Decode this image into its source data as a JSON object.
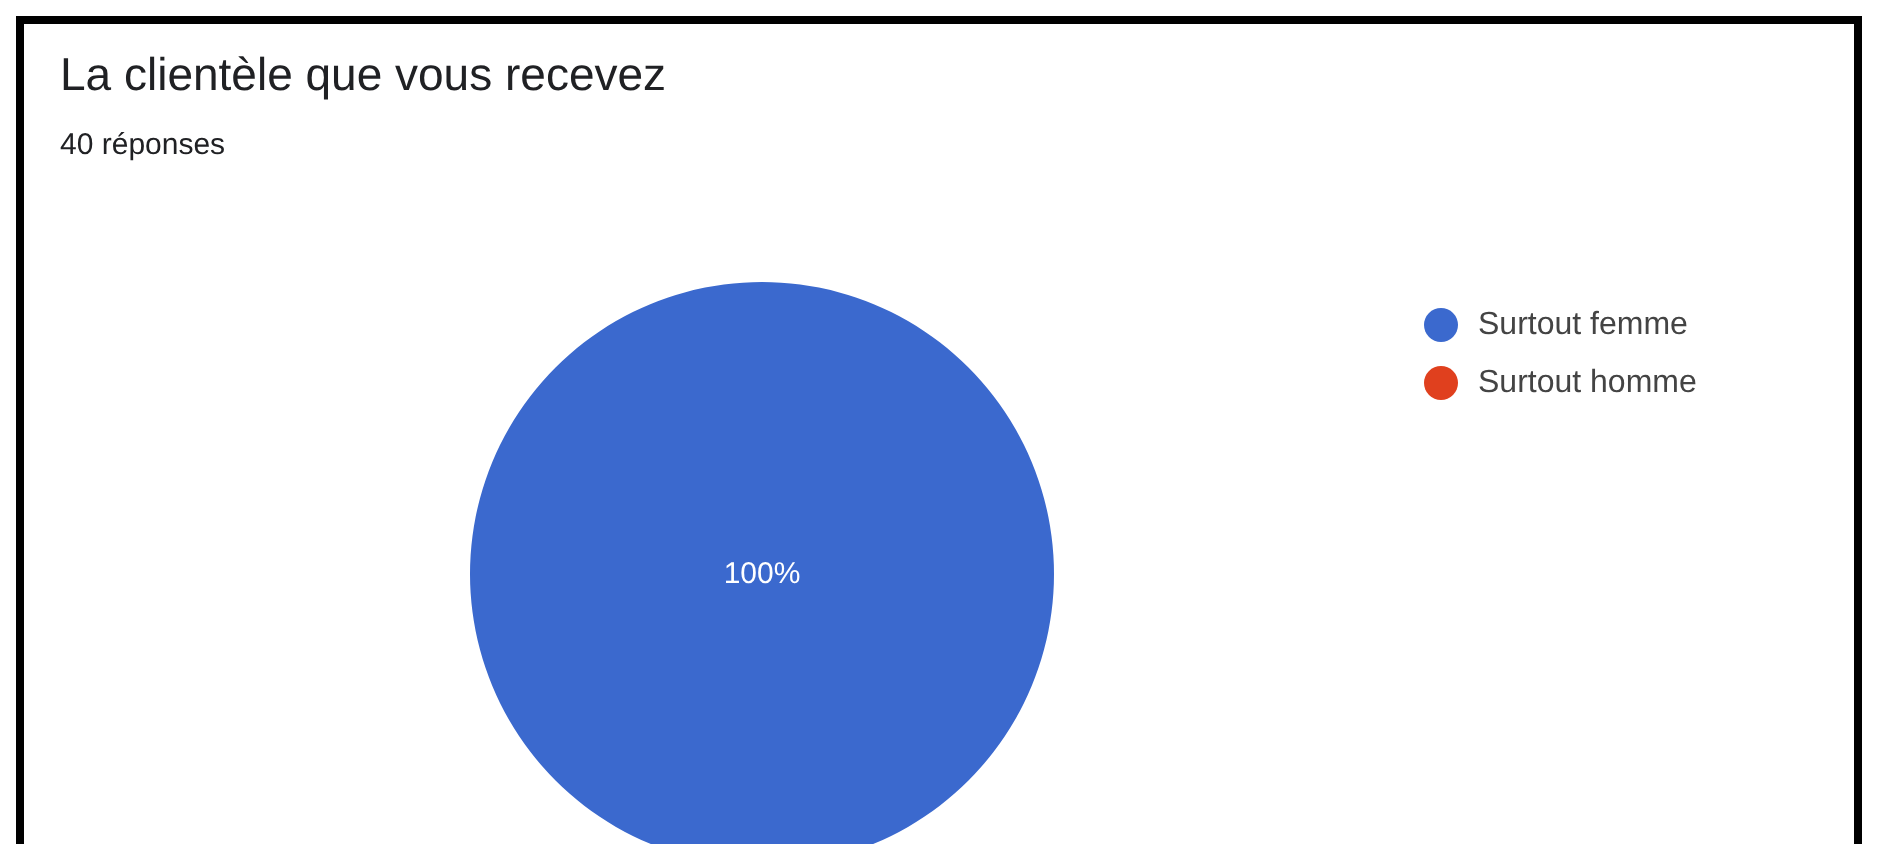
{
  "chart_data": {
    "type": "pie",
    "title": "La clientèle que vous recevez",
    "subtitle": "40 réponses",
    "categories": [
      "Surtout femme",
      "Surtout homme"
    ],
    "values": [
      100,
      0
    ],
    "colors": [
      "#3b69ce",
      "#e0401e"
    ],
    "value_labels": [
      "100%",
      null
    ],
    "legend": "right"
  }
}
